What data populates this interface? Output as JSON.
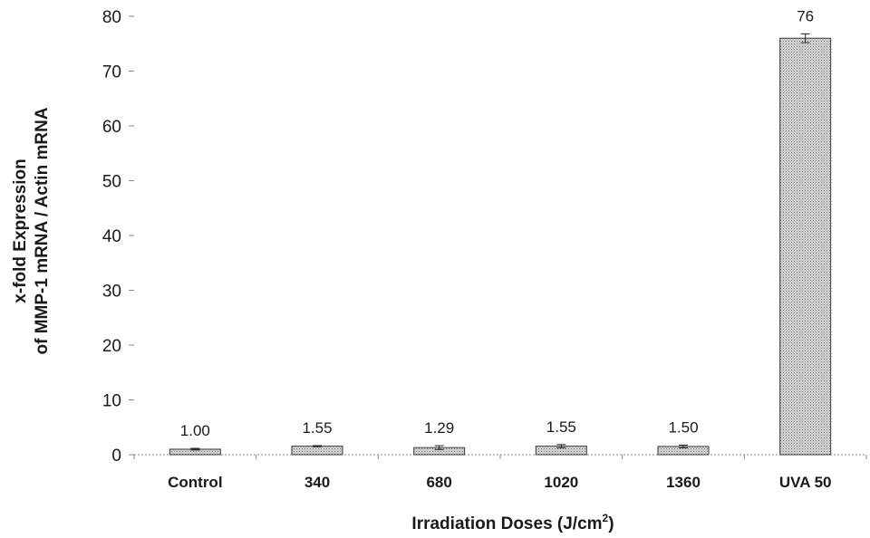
{
  "chart_data": {
    "type": "bar",
    "categories": [
      "Control",
      "340",
      "680",
      "1020",
      "1360",
      "UVA 50"
    ],
    "values": [
      1.0,
      1.55,
      1.29,
      1.55,
      1.5,
      76
    ],
    "errors": [
      0.15,
      0.1,
      0.35,
      0.3,
      0.25,
      0.8
    ],
    "data_labels": [
      "1.00",
      "1.55",
      "1.29",
      "1.55",
      "1.50",
      "76"
    ],
    "xlabel_main": "Irradiation Doses (J/cm",
    "xlabel_sup": "2",
    "xlabel_end": ")",
    "ylabel_line1": "x-fold Expression",
    "ylabel_line2": "of MMP-1 mRNA / Actin mRNA",
    "ylim": [
      0,
      80
    ],
    "yticks": [
      0,
      10,
      20,
      30,
      40,
      50,
      60,
      70,
      80
    ],
    "bar_color": "#bdbdbd",
    "grid": false
  }
}
